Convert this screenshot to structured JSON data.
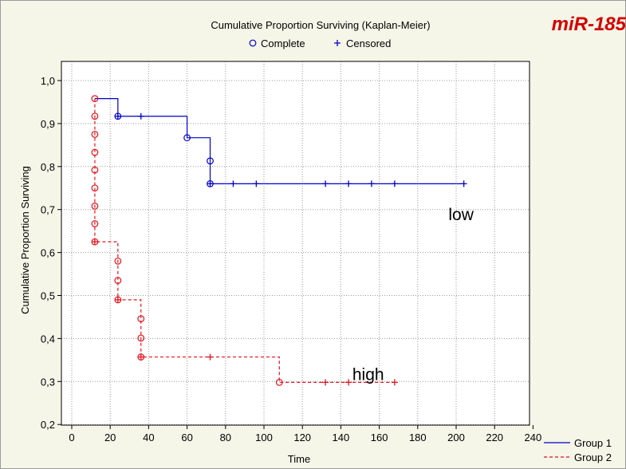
{
  "chart_data": {
    "type": "line",
    "subtype": "kaplan-meier-step",
    "title": "Cumulative Proportion Surviving (Kaplan-Meier)",
    "corner_label": "miR-185",
    "marker_legend": [
      {
        "name": "Complete",
        "symbol": "circle",
        "color": "#0000cc"
      },
      {
        "name": "Censored",
        "symbol": "plus",
        "color": "#0000cc"
      }
    ],
    "xlabel": "Time",
    "ylabel": "Cumulative Proportion Surviving",
    "xlim": [
      -6,
      240
    ],
    "ylim": [
      0.2,
      1.05
    ],
    "xticks": [
      0,
      20,
      40,
      60,
      80,
      100,
      120,
      140,
      160,
      180,
      200,
      220,
      240
    ],
    "yticks": [
      0.2,
      0.3,
      0.4,
      0.5,
      0.6,
      0.7,
      0.8,
      0.9,
      1.0
    ],
    "ytick_labels": [
      "0,2",
      "0,3",
      "0,4",
      "0,5",
      "0,6",
      "0,7",
      "0,8",
      "0,9",
      "1,0"
    ],
    "grid": true,
    "series": [
      {
        "name": "Group 1",
        "label": "low",
        "color": "#0000cc",
        "dash": false,
        "steps": [
          [
            12,
            0.958
          ],
          [
            24,
            0.917
          ],
          [
            60,
            0.867
          ],
          [
            72,
            0.76
          ],
          [
            204,
            0.76
          ]
        ],
        "complete": [
          [
            24,
            0.917
          ],
          [
            60,
            0.867
          ],
          [
            72,
            0.813
          ],
          [
            72,
            0.76
          ]
        ],
        "censored": [
          [
            24,
            0.917
          ],
          [
            36,
            0.917
          ],
          [
            72,
            0.76
          ],
          [
            84,
            0.76
          ],
          [
            96,
            0.76
          ],
          [
            132,
            0.76
          ],
          [
            144,
            0.76
          ],
          [
            156,
            0.76
          ],
          [
            168,
            0.76
          ],
          [
            204,
            0.76
          ]
        ]
      },
      {
        "name": "Group 2",
        "label": "high",
        "color": "#e8121c",
        "dash": true,
        "steps": [
          [
            12,
            0.958
          ],
          [
            12,
            0.625
          ],
          [
            24,
            0.49
          ],
          [
            36,
            0.357
          ],
          [
            108,
            0.298
          ],
          [
            168,
            0.298
          ]
        ],
        "complete": [
          [
            12,
            0.958
          ],
          [
            12,
            0.917
          ],
          [
            12,
            0.875
          ],
          [
            12,
            0.833
          ],
          [
            12,
            0.792
          ],
          [
            12,
            0.75
          ],
          [
            12,
            0.708
          ],
          [
            12,
            0.667
          ],
          [
            12,
            0.625
          ],
          [
            24,
            0.58
          ],
          [
            24,
            0.535
          ],
          [
            24,
            0.49
          ],
          [
            36,
            0.446
          ],
          [
            36,
            0.401
          ],
          [
            36,
            0.357
          ],
          [
            108,
            0.298
          ]
        ],
        "censored": [
          [
            12,
            0.625
          ],
          [
            24,
            0.49
          ],
          [
            36,
            0.357
          ],
          [
            72,
            0.357
          ],
          [
            132,
            0.298
          ],
          [
            144,
            0.298
          ],
          [
            168,
            0.298
          ]
        ]
      }
    ],
    "annotations": [
      {
        "text": "low",
        "x": 196,
        "y": 0.675
      },
      {
        "text": "high",
        "x": 146,
        "y": 0.303
      }
    ]
  }
}
